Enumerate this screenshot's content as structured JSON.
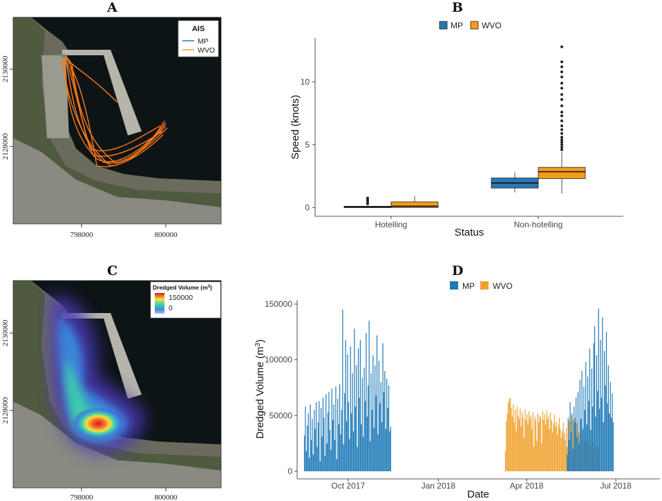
{
  "panels": {
    "a": "A",
    "b": "B",
    "c": "C",
    "d": "D"
  },
  "colors": {
    "mp": "#1f7ab8",
    "wvo": "#f0a22f",
    "wvo_track": "#ff7a1a",
    "mp_box": "#2b77b0",
    "wvo_box": "#f39c1c"
  },
  "map_a": {
    "legend_title": "AIS",
    "legend_items": [
      "MP",
      "WVO"
    ],
    "x_ticks": [
      "798000",
      "800000"
    ],
    "y_ticks": [
      "2130000",
      "2128000"
    ]
  },
  "map_c": {
    "legend_title": "Dredged Volume (m",
    "legend_title_sup": "3",
    "legend_title_end": ")",
    "legend_max": "150000",
    "legend_min": "0",
    "x_ticks": [
      "798000",
      "800000"
    ],
    "y_ticks": [
      "2130000",
      "2128000"
    ]
  },
  "chart_data": [
    {
      "type": "box",
      "panel": "B",
      "legend": [
        "MP",
        "WVO"
      ],
      "categories": [
        "Hotelling",
        "Non-hotelling"
      ],
      "xlabel": "Status",
      "ylabel": "Speed (knots)",
      "yticks": [
        "0",
        "5",
        "10"
      ],
      "ylim": [
        -0.7,
        13.5
      ],
      "series": [
        {
          "name": "MP",
          "boxes": [
            {
              "min": 0.0,
              "q1": 0.02,
              "median": 0.05,
              "q3": 0.1,
              "max": 0.15,
              "outliers": [
                0.3,
                0.45,
                0.6,
                0.75
              ]
            },
            {
              "min": 1.2,
              "q1": 1.55,
              "median": 1.95,
              "q3": 2.35,
              "max": 2.8,
              "outliers": []
            }
          ]
        },
        {
          "name": "WVO",
          "boxes": [
            {
              "min": 0.0,
              "q1": 0.0,
              "median": 0.1,
              "q3": 0.45,
              "max": 0.9,
              "outliers": []
            },
            {
              "min": 1.1,
              "q1": 2.3,
              "median": 2.85,
              "q3": 3.2,
              "max": 4.4,
              "outliers": [
                4.6,
                4.8,
                5.0,
                5.2,
                5.4,
                5.6,
                5.9,
                6.2,
                6.5,
                6.9,
                7.3,
                7.6,
                8.1,
                8.6,
                9.0,
                9.5,
                9.9,
                10.4,
                10.8,
                11.2,
                11.6,
                12.8
              ]
            }
          ]
        }
      ]
    },
    {
      "type": "bar",
      "panel": "D",
      "legend": [
        "MP",
        "WVO"
      ],
      "xlabel": "Date",
      "ylabel": "Dredged Volume (m",
      "ylabel_sup": "3",
      "ylabel_end": ")",
      "xticks": [
        "Oct 2017",
        "Jan 2018",
        "Apr 2018",
        "Jul 2018"
      ],
      "yticks": [
        "0",
        "50000",
        "100000",
        "150000"
      ],
      "ylim": [
        0,
        150000
      ],
      "xlim": [
        "2017-08-10",
        "2018-08-15"
      ],
      "series": [
        {
          "name": "MP",
          "x_start": "2017-08-17",
          "values": [
            32000,
            58000,
            18000,
            41000,
            52000,
            12000,
            60000,
            28000,
            47000,
            15000,
            55000,
            38000,
            62000,
            22000,
            44000,
            63000,
            9000,
            57000,
            31000,
            66000,
            48000,
            14000,
            69000,
            25000,
            53000,
            71000,
            37000,
            19000,
            74000,
            46000,
            60000,
            28000,
            76000,
            11000,
            65000,
            42000,
            78000,
            33000,
            55000,
            145000,
            24000,
            70000,
            118000,
            45000,
            105000,
            62000,
            29000,
            112000,
            52000,
            88000,
            36000,
            128000,
            58000,
            95000,
            22000,
            110000,
            66000,
            118000,
            42000,
            84000,
            31000,
            93000,
            63000,
            124000,
            49000,
            77000,
            135000,
            27000,
            88000,
            55000,
            104000,
            39000,
            95000,
            68000,
            122000,
            33000,
            99000,
            61000,
            80000,
            44000,
            115000,
            71000,
            90000,
            38000,
            83000,
            57000,
            77000,
            36000,
            40000
          ]
        },
        {
          "name": "MP",
          "x_start": "2018-05-12",
          "values": [
            15000,
            48000,
            28000,
            62000,
            35000,
            52000,
            20000,
            58000,
            44000,
            66000,
            31000,
            71000,
            25000,
            82000,
            47000,
            90000,
            38000,
            76000,
            55000,
            98000,
            42000,
            85000,
            63000,
            110000,
            37000,
            92000,
            58000,
            115000,
            130000,
            49000,
            104000,
            72000,
            146000,
            56000,
            118000,
            66000,
            138000,
            44000,
            108000,
            77000,
            125000,
            61000,
            95000,
            52000,
            80000,
            48000,
            70000,
            44000
          ]
        },
        {
          "name": "WVO",
          "x_start": "2018-03-10",
          "values": [
            18000,
            45000,
            52000,
            62000,
            65000,
            66000,
            57000,
            49000,
            60000,
            44000,
            55000,
            36000,
            58000,
            50000,
            47000,
            56000,
            40000,
            53000,
            48000,
            30000,
            55000,
            46000,
            51000,
            42000,
            54000,
            47000,
            50000,
            38000,
            53000,
            22000,
            49000,
            46000,
            27000,
            52000,
            44000,
            50000,
            48000,
            25000,
            54000,
            46000,
            51000,
            42000,
            54000,
            47000,
            50000,
            38000,
            53000,
            46000,
            35000,
            43000,
            51000,
            40000,
            45000,
            33000,
            41000,
            48000,
            38000,
            30000,
            36000,
            44000,
            34000,
            28000,
            39000,
            22000,
            33000,
            45000,
            30000,
            50000,
            25000,
            46000,
            40000,
            48000,
            37000,
            43000,
            30000,
            35000,
            28000,
            32000,
            25000,
            30000,
            27000,
            29000,
            26000,
            31000,
            24000,
            28000,
            23000,
            27000,
            22000,
            26000,
            25000,
            21000,
            24000,
            20000,
            23000,
            19000
          ]
        }
      ]
    }
  ]
}
